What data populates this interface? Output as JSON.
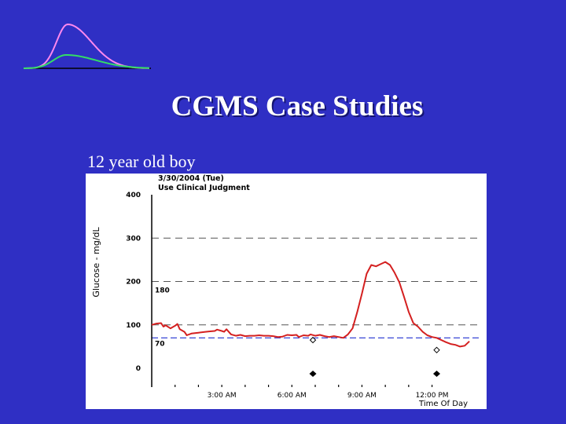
{
  "slide": {
    "title": "CGMS Case Studies",
    "subtitle": "12 year old boy"
  },
  "logo": {
    "icon": "glucose-curves-icon",
    "colors": [
      "#ff88ee",
      "#33dd66"
    ]
  },
  "chart_data": {
    "type": "line",
    "header_date": "3/30/2004 (Tue)",
    "header_note": "Use Clinical Judgment",
    "ylabel": "Glucose - mg/dL",
    "xlabel": "Time Of Day",
    "ylim": [
      0,
      400
    ],
    "xlim": [
      0,
      14
    ],
    "yticks": [
      {
        "value": 0,
        "label": "0"
      },
      {
        "value": 100,
        "label": "100"
      },
      {
        "value": 200,
        "label": "200"
      },
      {
        "value": 300,
        "label": "300"
      },
      {
        "value": 400,
        "label": "400"
      }
    ],
    "xticks": [
      {
        "value": 3,
        "label": "3:00 AM"
      },
      {
        "value": 6,
        "label": "6:00 AM"
      },
      {
        "value": 9,
        "label": "9:00 AM"
      },
      {
        "value": 12,
        "label": "12:00 PM"
      }
    ],
    "minor_xticks": [
      1,
      2,
      3,
      4,
      5,
      6,
      7,
      8,
      9,
      10,
      11,
      12
    ],
    "gridlines_dashed": [
      100,
      200,
      300
    ],
    "high_limit": {
      "value": 180,
      "label": "180",
      "color": "#e02020"
    },
    "low_limit": {
      "value": 70,
      "label": "70",
      "color": "#2030d0"
    },
    "series": [
      {
        "color": "#d42020",
        "x": [
          0,
          0.2,
          0.4,
          0.5,
          0.6,
          0.8,
          1.0,
          1.1,
          1.2,
          1.4,
          1.5,
          1.7,
          2.0,
          2.3,
          2.5,
          2.7,
          2.8,
          3.0,
          3.1,
          3.2,
          3.4,
          3.6,
          3.8,
          4.0,
          4.2,
          4.4,
          4.6,
          4.8,
          5.0,
          5.2,
          5.4,
          5.6,
          5.8,
          6.0,
          6.2,
          6.3,
          6.5,
          6.7,
          6.8,
          7.0,
          7.2,
          7.4,
          7.6,
          7.8,
          8.0,
          8.2,
          8.4,
          8.6,
          8.8,
          9.0,
          9.2,
          9.4,
          9.6,
          9.8,
          10.0,
          10.2,
          10.4,
          10.6,
          10.8,
          11.0,
          11.2,
          11.4,
          11.6,
          11.8,
          12.0,
          12.2,
          12.4,
          12.6,
          12.8,
          13.0,
          13.2,
          13.4,
          13.6
        ],
        "y": [
          100,
          103,
          104,
          96,
          99,
          92,
          98,
          102,
          90,
          84,
          76,
          80,
          82,
          84,
          85,
          86,
          89,
          86,
          84,
          90,
          78,
          75,
          77,
          74,
          75,
          75,
          76,
          75,
          75,
          74,
          72,
          73,
          77,
          76,
          77,
          72,
          76,
          75,
          78,
          75,
          77,
          74,
          72,
          74,
          72,
          70,
          78,
          92,
          130,
          172,
          218,
          238,
          235,
          240,
          245,
          238,
          220,
          198,
          165,
          130,
          104,
          96,
          84,
          76,
          72,
          70,
          65,
          60,
          56,
          54,
          50,
          52,
          62
        ]
      }
    ],
    "fingerstick_markers": [
      {
        "x": 6.9,
        "y": 65,
        "symbol": "open-diamond"
      },
      {
        "x": 12.2,
        "y": 42,
        "symbol": "open-diamond"
      }
    ],
    "event_markers": [
      {
        "x": 6.9,
        "symbol": "filled-diamond"
      },
      {
        "x": 12.2,
        "symbol": "filled-diamond"
      }
    ]
  }
}
